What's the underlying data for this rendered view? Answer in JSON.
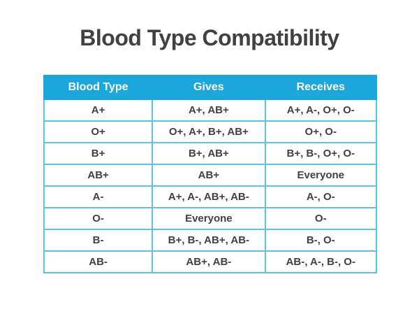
{
  "page_title": "Blood Type Compatibility",
  "colors": {
    "header_bg": "#1BA7DB",
    "grid_line": "#5BC3E6",
    "title_text": "#414042",
    "cell_text": "#414042",
    "header_text": "#FFFFFF",
    "background": "#FFFFFF"
  },
  "chart_data": {
    "type": "table",
    "title": "Blood Type Compatibility",
    "columns": [
      "Blood Type",
      "Gives",
      "Receives"
    ],
    "rows": [
      [
        "A+",
        "A+, AB+",
        "A+, A-, O+, O-"
      ],
      [
        "O+",
        "O+, A+, B+, AB+",
        "O+, O-"
      ],
      [
        "B+",
        "B+, AB+",
        "B+, B-, O+, O-"
      ],
      [
        "AB+",
        "AB+",
        "Everyone"
      ],
      [
        "A-",
        "A+, A-, AB+, AB-",
        "A-, O-"
      ],
      [
        "O-",
        "Everyone",
        "O-"
      ],
      [
        "B-",
        "B+, B-, AB+, AB-",
        "B-, O-"
      ],
      [
        "AB-",
        "AB+, AB-",
        "AB-, A-, B-, O-"
      ]
    ],
    "legend": null,
    "grid": true
  }
}
